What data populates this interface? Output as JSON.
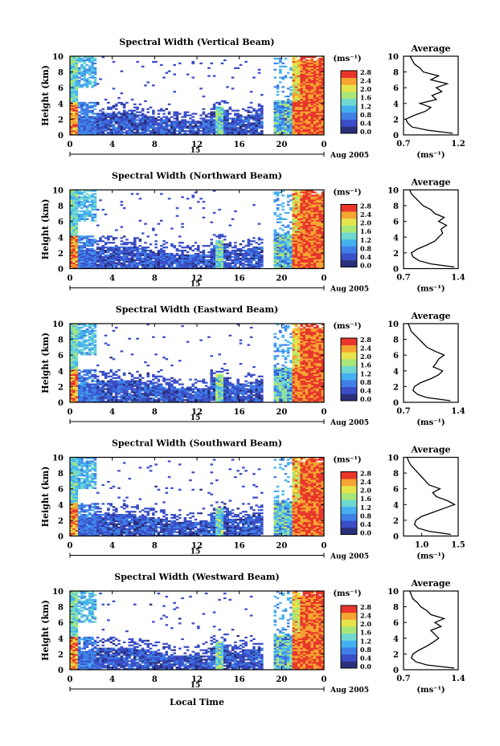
{
  "figure": {
    "xlabel": "Local Time",
    "date_label": "Aug 2005",
    "day_label": "15",
    "colorbar_unit": "(ms⁻¹)",
    "colorbar_ticks": [
      "0.0",
      "0.4",
      "0.8",
      "1.2",
      "1.6",
      "2.0",
      "2.4",
      "2.8"
    ],
    "avg_title": "Average",
    "avg_unit": "(ms⁻¹)",
    "colormap": [
      "#2a2f7a",
      "#3a4ec8",
      "#3f7fe6",
      "#45b0f0",
      "#6fd8d0",
      "#a9e678",
      "#e6e44a",
      "#f5a531",
      "#e8362a"
    ]
  },
  "chart_data": [
    {
      "type": "heatmap",
      "title": "Spectral Width (Vertical Beam)",
      "ylabel": "Height (km)",
      "x_ticks": [
        "0",
        "4",
        "8",
        "12",
        "16",
        "20",
        "0"
      ],
      "y_ticks": [
        "0",
        "2",
        "4",
        "6",
        "8",
        "10"
      ],
      "xlim": [
        0,
        24
      ],
      "ylim": [
        0,
        10
      ],
      "clim": [
        0.0,
        2.8
      ],
      "average_profile": {
        "x_ticks": [
          "0.7",
          "1.2"
        ],
        "xlim": [
          0.7,
          1.2
        ],
        "height_km": [
          0.2,
          0.6,
          1.0,
          1.5,
          2.0,
          2.5,
          3.0,
          3.5,
          4.0,
          4.5,
          5.0,
          5.5,
          6.0,
          6.5,
          7.0,
          7.5,
          8.0,
          8.5,
          9.0,
          9.5,
          10.0
        ],
        "value": [
          1.15,
          0.92,
          0.78,
          0.74,
          0.72,
          0.8,
          0.9,
          0.95,
          0.85,
          1.0,
          0.96,
          1.05,
          1.0,
          1.1,
          0.95,
          1.02,
          0.88,
          0.85,
          0.8,
          0.78,
          0.76
        ]
      }
    },
    {
      "type": "heatmap",
      "title": "Spectral Width (Northward Beam)",
      "ylabel": "Height (km)",
      "x_ticks": [
        "0",
        "4",
        "8",
        "12",
        "16",
        "20",
        "0"
      ],
      "y_ticks": [
        "0",
        "2",
        "4",
        "6",
        "8",
        "10"
      ],
      "xlim": [
        0,
        24
      ],
      "ylim": [
        0,
        10
      ],
      "clim": [
        0.0,
        2.8
      ],
      "average_profile": {
        "x_ticks": [
          "0.7",
          "1.4"
        ],
        "xlim": [
          0.7,
          1.4
        ],
        "height_km": [
          0.2,
          0.6,
          1.0,
          1.5,
          2.0,
          2.5,
          3.0,
          3.5,
          4.0,
          4.5,
          5.0,
          5.5,
          6.0,
          6.5,
          7.0,
          7.5,
          8.0,
          8.5,
          9.0,
          9.5,
          10.0
        ],
        "value": [
          1.35,
          1.05,
          0.9,
          0.82,
          0.8,
          0.88,
          1.0,
          1.1,
          1.15,
          1.2,
          1.18,
          1.25,
          1.15,
          1.22,
          1.1,
          1.05,
          0.95,
          0.9,
          0.85,
          0.8,
          0.78
        ]
      }
    },
    {
      "type": "heatmap",
      "title": "Spectral Width (Eastward Beam)",
      "ylabel": "Height (km)",
      "x_ticks": [
        "0",
        "4",
        "8",
        "12",
        "16",
        "20",
        "0"
      ],
      "y_ticks": [
        "0",
        "2",
        "4",
        "6",
        "8",
        "10"
      ],
      "xlim": [
        0,
        24
      ],
      "ylim": [
        0,
        10
      ],
      "clim": [
        0.0,
        2.8
      ],
      "average_profile": {
        "x_ticks": [
          "0.7",
          "1.4"
        ],
        "xlim": [
          0.7,
          1.4
        ],
        "height_km": [
          0.2,
          0.6,
          1.0,
          1.5,
          2.0,
          2.5,
          3.0,
          3.5,
          4.0,
          4.5,
          5.0,
          5.5,
          6.0,
          6.5,
          7.0,
          7.5,
          8.0,
          8.5,
          9.0,
          9.5,
          10.0
        ],
        "value": [
          1.3,
          1.0,
          0.88,
          0.82,
          0.84,
          0.92,
          1.05,
          1.15,
          1.2,
          1.08,
          1.12,
          1.15,
          1.22,
          1.1,
          1.0,
          0.95,
          0.9,
          0.85,
          0.8,
          0.78,
          0.76
        ]
      }
    },
    {
      "type": "heatmap",
      "title": "Spectral Width (Southward Beam)",
      "ylabel": "Height (km)",
      "x_ticks": [
        "0",
        "4",
        "8",
        "12",
        "16",
        "20",
        "0"
      ],
      "y_ticks": [
        "0",
        "2",
        "4",
        "6",
        "8",
        "10"
      ],
      "xlim": [
        0,
        24
      ],
      "ylim": [
        0,
        10
      ],
      "clim": [
        0.0,
        2.8
      ],
      "average_profile": {
        "x_ticks": [
          "1.0",
          "1.5"
        ],
        "xlim": [
          0.75,
          1.5
        ],
        "height_km": [
          0.2,
          0.6,
          1.0,
          1.5,
          2.0,
          2.5,
          3.0,
          3.5,
          4.0,
          4.5,
          5.0,
          5.5,
          6.0,
          6.5,
          7.0,
          7.5,
          8.0,
          8.5,
          9.0,
          9.5,
          10.0
        ],
        "value": [
          1.4,
          1.1,
          0.95,
          0.9,
          0.92,
          1.0,
          1.15,
          1.3,
          1.45,
          1.35,
          1.2,
          1.15,
          1.25,
          1.1,
          1.05,
          1.0,
          0.95,
          0.9,
          0.85,
          0.82,
          0.8
        ]
      }
    },
    {
      "type": "heatmap",
      "title": "Spectral Width (Westward Beam)",
      "ylabel": "Height (km)",
      "x_ticks": [
        "0",
        "4",
        "8",
        "12",
        "16",
        "20",
        "0"
      ],
      "y_ticks": [
        "0",
        "2",
        "4",
        "6",
        "8",
        "10"
      ],
      "xlim": [
        0,
        24
      ],
      "ylim": [
        0,
        10
      ],
      "clim": [
        0.0,
        2.8
      ],
      "average_profile": {
        "x_ticks": [
          "0.7",
          "1.4"
        ],
        "xlim": [
          0.7,
          1.4
        ],
        "height_km": [
          0.2,
          0.6,
          1.0,
          1.5,
          2.0,
          2.5,
          3.0,
          3.5,
          4.0,
          4.5,
          5.0,
          5.5,
          6.0,
          6.5,
          7.0,
          7.5,
          8.0,
          8.5,
          9.0,
          9.5,
          10.0
        ],
        "value": [
          1.35,
          1.0,
          0.86,
          0.8,
          0.82,
          0.9,
          1.0,
          1.08,
          1.15,
          1.1,
          1.05,
          1.18,
          1.1,
          1.22,
          1.05,
          1.0,
          0.92,
          0.88,
          0.82,
          0.8,
          0.78
        ]
      }
    }
  ]
}
